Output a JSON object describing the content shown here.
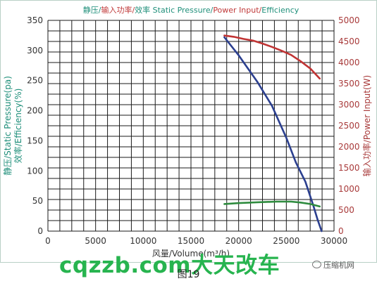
{
  "chart_data": {
    "type": "line",
    "title_parts": [
      {
        "text": "静压/",
        "color": "#1f8f7a"
      },
      {
        "text": "输入功率/",
        "color": "#c03a3a"
      },
      {
        "text": "效率  ",
        "color": "#1f8f7a"
      },
      {
        "text": "Static Pressure/",
        "color": "#1f8f7a"
      },
      {
        "text": "Power Input/",
        "color": "#c03a3a"
      },
      {
        "text": "Efficiency",
        "color": "#1f8f7a"
      }
    ],
    "xlabel": "风量/Volume(m³/h)",
    "ylabel_left": "静压/Static Pressure(pa)",
    "ylabel_left2": "效率/Efficiency(%)",
    "ylabel_right": "输入功率/Power Input(W)",
    "xlim": [
      0,
      30000
    ],
    "ylim_left": [
      0,
      350
    ],
    "ylim_right": [
      0,
      5000
    ],
    "x_ticks": [
      0,
      5000,
      10000,
      15000,
      20000,
      25000,
      30000
    ],
    "y_left_ticks": [
      0,
      50,
      100,
      150,
      200,
      250,
      300,
      350
    ],
    "y_right_ticks": [
      0,
      500,
      1000,
      1500,
      2000,
      2500,
      3000,
      3500,
      4000,
      4500,
      5000
    ],
    "grid": true,
    "series": [
      {
        "axis": "left",
        "color": "#2b3f8f",
        "points": [
          [
            18500,
            322
          ],
          [
            20000,
            292
          ],
          [
            22000,
            247
          ],
          [
            23500,
            208
          ],
          [
            25000,
            155
          ],
          [
            26000,
            114
          ],
          [
            27000,
            82
          ],
          [
            27800,
            44
          ],
          [
            28300,
            18
          ],
          [
            28700,
            0
          ]
        ]
      },
      {
        "axis": "right",
        "color": "#c03434",
        "points": [
          [
            18500,
            4640
          ],
          [
            19500,
            4610
          ],
          [
            20500,
            4560
          ],
          [
            21500,
            4520
          ],
          [
            22500,
            4450
          ],
          [
            23500,
            4370
          ],
          [
            24500,
            4280
          ],
          [
            25500,
            4180
          ],
          [
            26500,
            4030
          ],
          [
            27500,
            3860
          ],
          [
            28500,
            3620
          ]
        ]
      },
      {
        "axis": "left",
        "color": "#2e8b3e",
        "points": [
          [
            18500,
            45
          ],
          [
            20000,
            46.5
          ],
          [
            22000,
            48
          ],
          [
            24000,
            49
          ],
          [
            25500,
            49
          ],
          [
            26500,
            47.5
          ],
          [
            27500,
            45
          ],
          [
            28500,
            41
          ]
        ]
      }
    ]
  },
  "watermark": "cqzzb.com大天改车",
  "brand": "压缩机网",
  "brand_icon": "wechat-icon",
  "caption": "图19"
}
